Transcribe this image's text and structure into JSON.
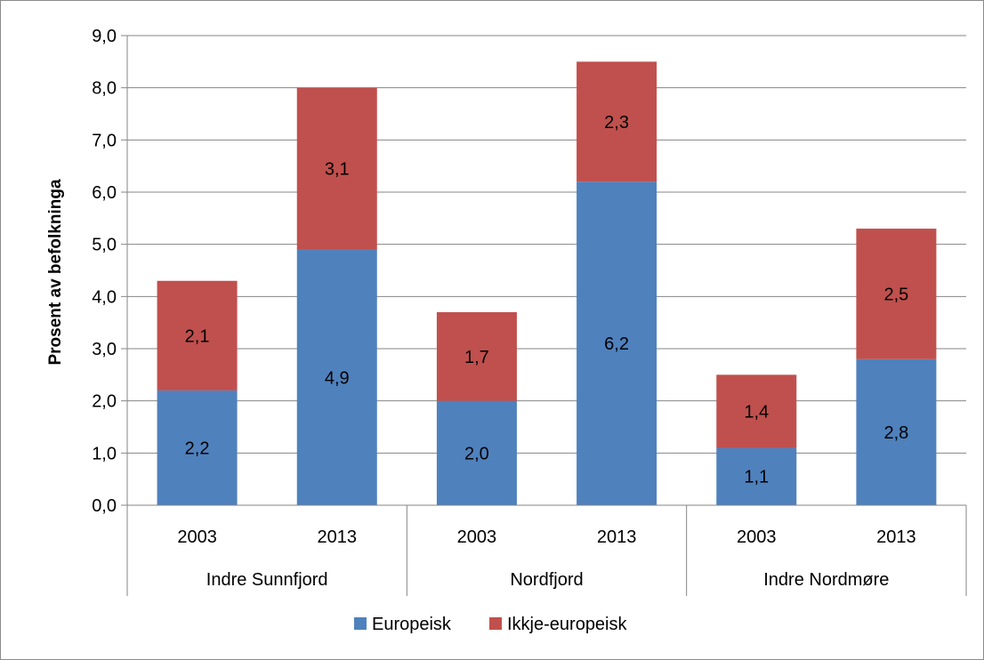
{
  "chart_data": {
    "type": "bar",
    "stacked": true,
    "ylabel": "Prosent av befolkninga",
    "ylim": [
      0,
      9
    ],
    "y_ticks": [
      "0,0",
      "1,0",
      "2,0",
      "3,0",
      "4,0",
      "5,0",
      "6,0",
      "7,0",
      "8,0",
      "9,0"
    ],
    "grid": true,
    "legend_position": "bottom",
    "groups": [
      "Indre Sunnfjord",
      "Nordfjord",
      "Indre Nordmøre"
    ],
    "categories": [
      "2003",
      "2013",
      "2003",
      "2013",
      "2003",
      "2013"
    ],
    "series": [
      {
        "name": "Europeisk",
        "color": "#4f81bd",
        "values": [
          2.2,
          4.9,
          2.0,
          6.2,
          1.1,
          2.8
        ],
        "labels": [
          "2,2",
          "4,9",
          "2,0",
          "6,2",
          "1,1",
          "2,8"
        ]
      },
      {
        "name": "Ikkje-europeisk",
        "color": "#c0504d",
        "values": [
          2.1,
          3.1,
          1.7,
          2.3,
          1.4,
          2.5
        ],
        "labels": [
          "2,1",
          "3,1",
          "1,7",
          "2,3",
          "1,4",
          "2,5"
        ]
      }
    ]
  }
}
